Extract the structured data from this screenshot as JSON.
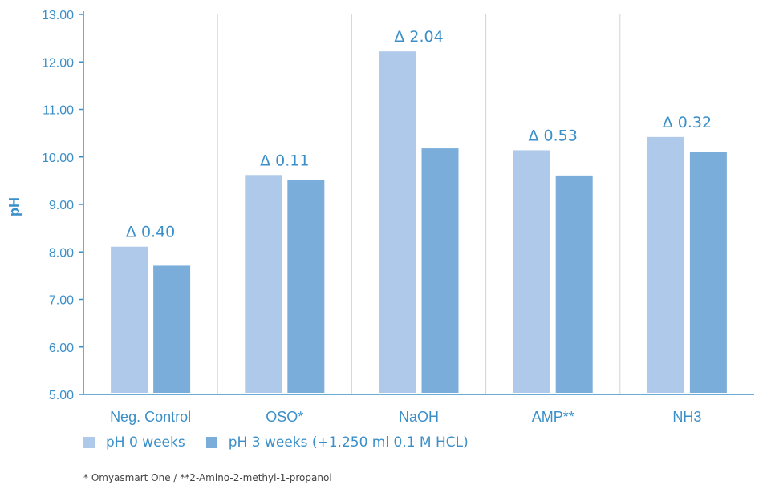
{
  "chart_data": {
    "type": "bar",
    "ylabel": "pH",
    "ylim": [
      5.0,
      13.0
    ],
    "yticks": [
      "5.00",
      "6.00",
      "7.00",
      "8.00",
      "9.00",
      "10.00",
      "11.00",
      "12.00",
      "13.00"
    ],
    "grid": "vertical category separators",
    "legend_position": "bottom",
    "categories": [
      "Neg. Control",
      "OSO*",
      "NaOH",
      "AMP**",
      "NH3"
    ],
    "series": [
      {
        "name": "pH 0 weeks",
        "color": "#aec9e9",
        "values": [
          8.11,
          9.62,
          12.22,
          10.14,
          10.42
        ]
      },
      {
        "name": "pH 3 weeks (+1.250 ml 0.1 M HCL)",
        "color": "#7aadd9",
        "values": [
          7.71,
          9.51,
          10.18,
          9.61,
          10.1
        ]
      }
    ],
    "annotations": [
      "Δ 0.40",
      "Δ 0.11",
      "Δ 2.04",
      "Δ 0.53",
      "Δ 0.32"
    ]
  },
  "footnote": "* Omyasmart One / **2-Amino-2-methyl-1-propanol",
  "colors": {
    "axis": "#3a8fc9",
    "text": "#3a8fc9"
  }
}
